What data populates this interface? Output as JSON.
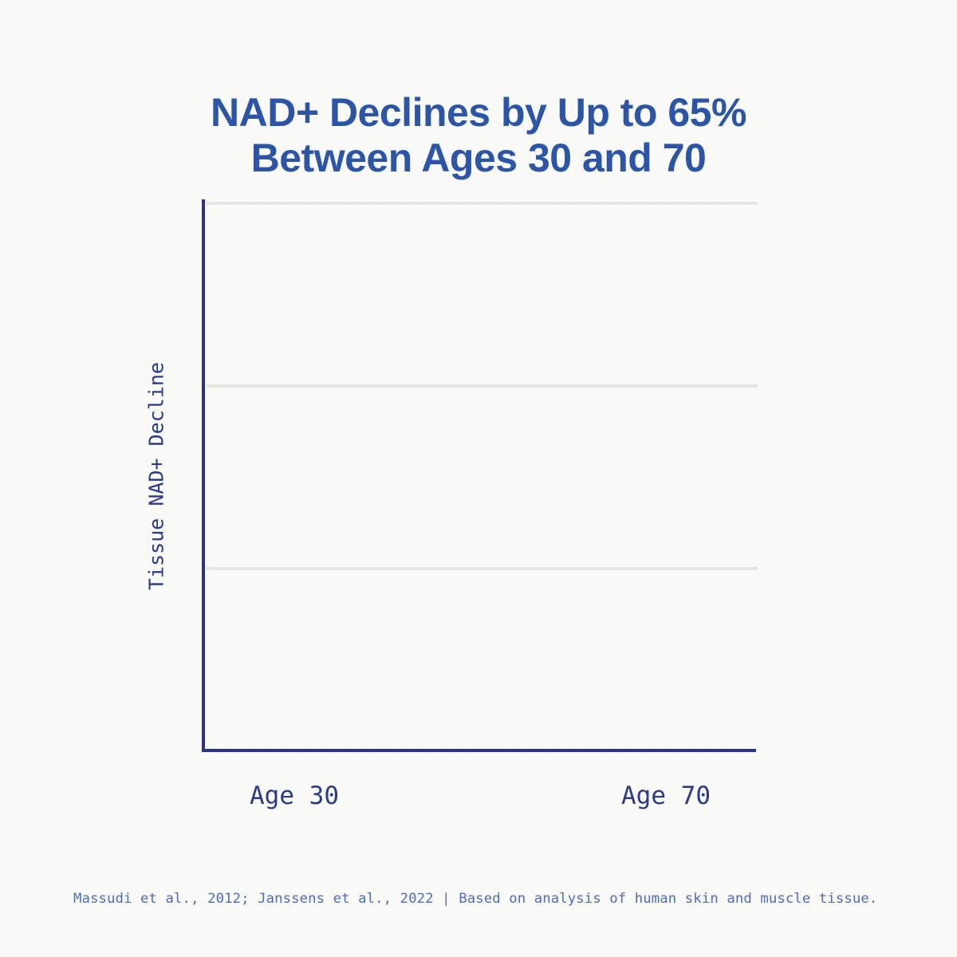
{
  "title": {
    "line1": "NAD+ Declines by Up to 65%",
    "line2": "Between Ages 30 and 70"
  },
  "chart": {
    "y_axis_label": "Tissue NAD+ Decline",
    "x_tick_labels": [
      "Age 30",
      "Age 70"
    ],
    "gridline_count": 3
  },
  "footer": {
    "text": "Massudi et al., 2012; Janssens et al., 2022 | Based on analysis of human skin and muscle tissue."
  },
  "colors": {
    "background": "#fbfbfa",
    "title": "#2d55a7",
    "axis": "#2b3280",
    "tick_label": "#2c3a85",
    "gridline": "#e7e6e3",
    "footer": "#4f6db5"
  },
  "chart_data": {
    "type": "line",
    "title": "NAD+ Declines by Up to 65% Between Ages 30 and 70",
    "categories": [
      "Age 30",
      "Age 70"
    ],
    "series": [],
    "xlabel": "",
    "ylabel": "Tissue NAD+ Decline",
    "y_tick_labels": [],
    "grid": "horizontal",
    "gridline_count": 3,
    "legend": "none",
    "plot_state": "empty plot area; no data series rendered in this frame",
    "source": "Massudi et al., 2012; Janssens et al., 2022 | Based on analysis of human skin and muscle tissue."
  }
}
